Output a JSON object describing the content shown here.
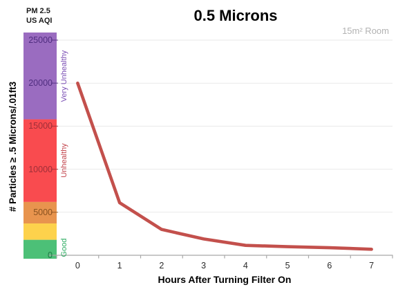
{
  "header": {
    "aqi_label_line1": "PM 2.5",
    "aqi_label_line2": "US AQI",
    "room_label": "15m² Room"
  },
  "chart_data": {
    "type": "line",
    "title": "0.5 Microns",
    "x": [
      0,
      1,
      2,
      3,
      4,
      5,
      6,
      7
    ],
    "values": [
      20000,
      6100,
      3000,
      1900,
      1150,
      1000,
      880,
      700
    ],
    "xlabel": "Hours After Turning Filter On",
    "ylabel": "# Particles ≥ .5 Microns/.01ft3",
    "ylim": [
      0,
      25900
    ],
    "y_tick_values": [
      0,
      5000,
      10000,
      15000,
      20000,
      25000
    ],
    "line_color": "#c3504c",
    "grid": true,
    "legend": false
  },
  "y_axis": {
    "ticks": [
      {
        "value": 0,
        "label": "0",
        "color": "#1e7a45"
      },
      {
        "value": 5000,
        "label": "5000",
        "color": "#8a5220"
      },
      {
        "value": 10000,
        "label": "10000",
        "color": "#9e2f38"
      },
      {
        "value": 15000,
        "label": "15000",
        "color": "#9e2f38"
      },
      {
        "value": 20000,
        "label": "20000",
        "color": "#4f2d7f"
      },
      {
        "value": 25000,
        "label": "25000",
        "color": "#4f2d7f"
      }
    ]
  },
  "x_axis": {
    "ticks": [
      "0",
      "1",
      "2",
      "3",
      "4",
      "5",
      "6",
      "7"
    ]
  },
  "aqi_scale": {
    "bands": [
      {
        "label": "Good",
        "color": "#4cc077",
        "label_color": "#2bab60",
        "top_value": 1800
      },
      {
        "label": "",
        "color": "#fdd24c",
        "label_color": "",
        "top_value": 3700
      },
      {
        "label": "",
        "color": "#e8944e",
        "label_color": "",
        "top_value": 6200
      },
      {
        "label": "Unhealthy",
        "color": "#f94b4f",
        "label_color": "#c2444c",
        "top_value": 15800
      },
      {
        "label": "Very Unhealthy",
        "color": "#9a6cc0",
        "label_color": "#7b4fb5",
        "top_value": 25900
      }
    ]
  },
  "colors": {
    "gridline": "#e9e9e9",
    "axis": "#a8a8a8",
    "title": "#000000",
    "room_label": "#b2b2b2"
  }
}
